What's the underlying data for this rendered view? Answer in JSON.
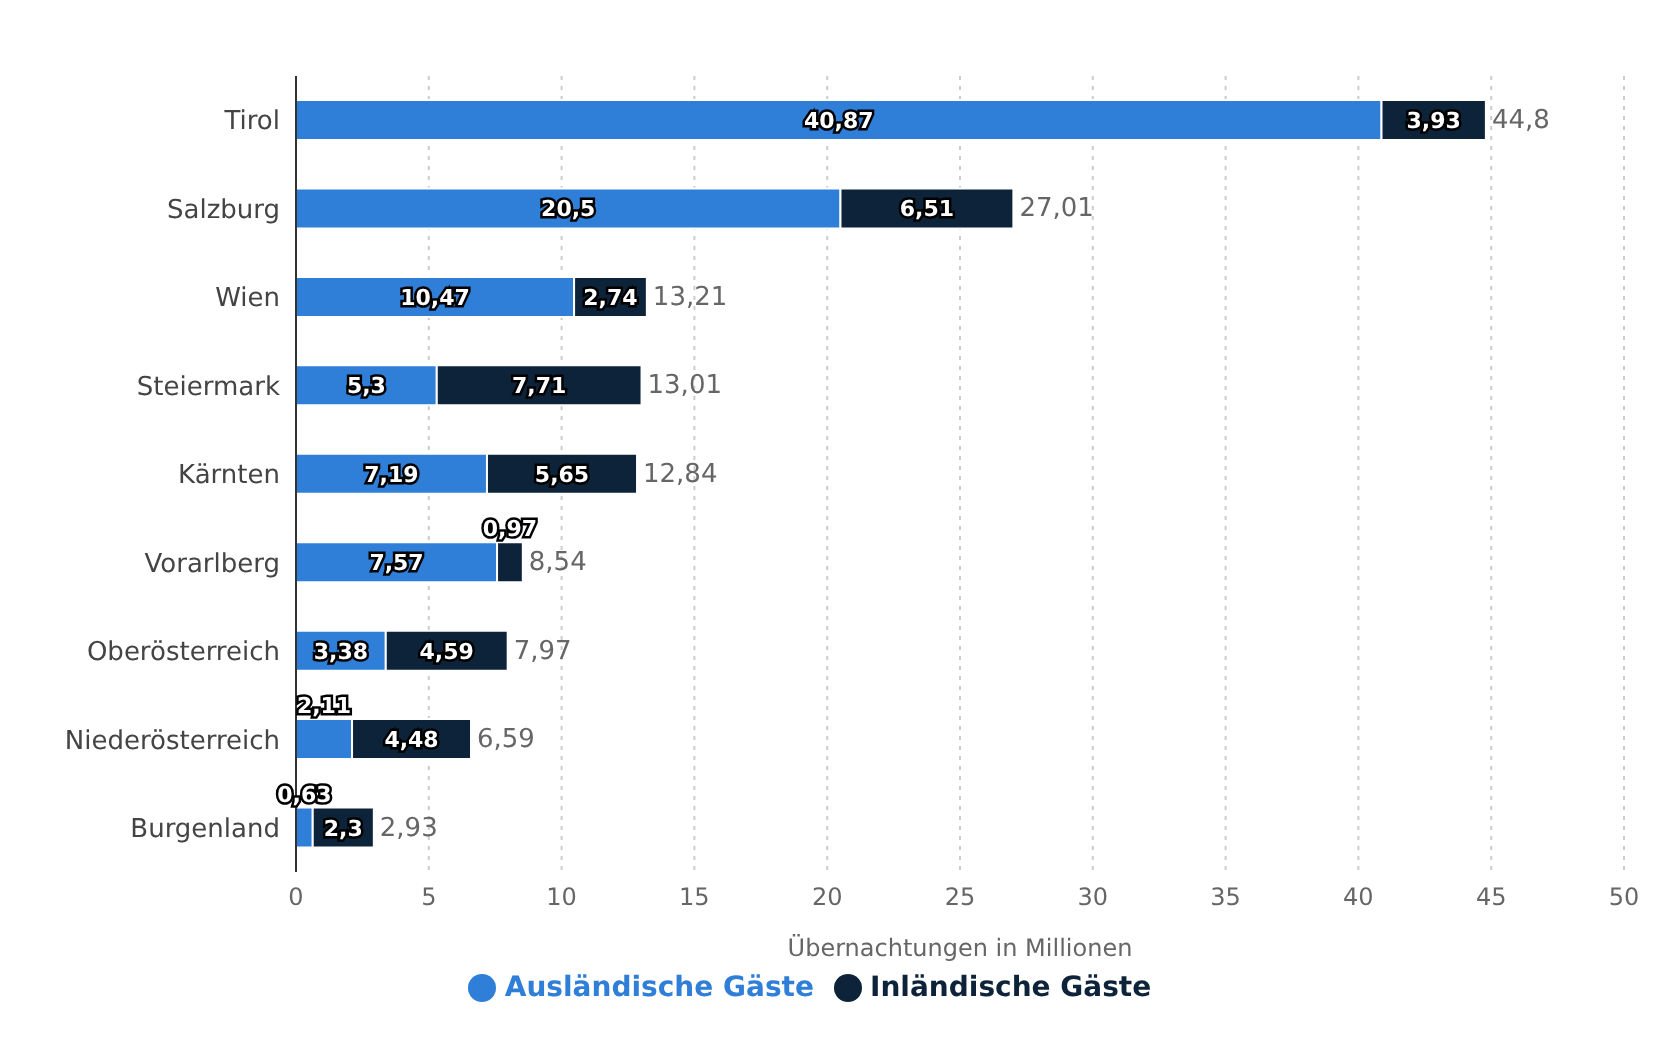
{
  "chart_data": {
    "type": "bar",
    "orientation": "horizontal",
    "stacked": true,
    "xlabel": "Übernachtungen in Millionen",
    "categories": [
      "Tirol",
      "Salzburg",
      "Wien",
      "Steiermark",
      "Kärnten",
      "Vorarlberg",
      "Oberösterreich",
      "Niederösterreich",
      "Burgenland"
    ],
    "series": [
      {
        "name": "Ausländische Gäste",
        "color": "#2f7ed8",
        "values": [
          40.87,
          20.5,
          10.47,
          5.3,
          7.19,
          7.57,
          3.38,
          2.11,
          0.63
        ],
        "value_labels": [
          "40,87",
          "20,5",
          "10,47",
          "5,3",
          "7,19",
          "7,57",
          "3,38",
          "2,11",
          "0,63"
        ]
      },
      {
        "name": "Inländische Gäste",
        "color": "#0d233a",
        "values": [
          3.93,
          6.51,
          2.74,
          7.71,
          5.65,
          0.97,
          4.59,
          4.48,
          2.3
        ],
        "value_labels": [
          "3,93",
          "6,51",
          "2,74",
          "7,71",
          "5,65",
          "0,97",
          "4,59",
          "4,48",
          "2,3"
        ]
      }
    ],
    "totals": [
      "44,8",
      "27,01",
      "13,21",
      "13,01",
      "12,84",
      "8,54",
      "7,97",
      "6,59",
      "2,93"
    ],
    "xlim": [
      0,
      50
    ],
    "xticks": [
      0,
      5,
      10,
      15,
      20,
      25,
      30,
      35,
      40,
      45,
      50
    ],
    "grid": "x",
    "legend": "bottom"
  }
}
